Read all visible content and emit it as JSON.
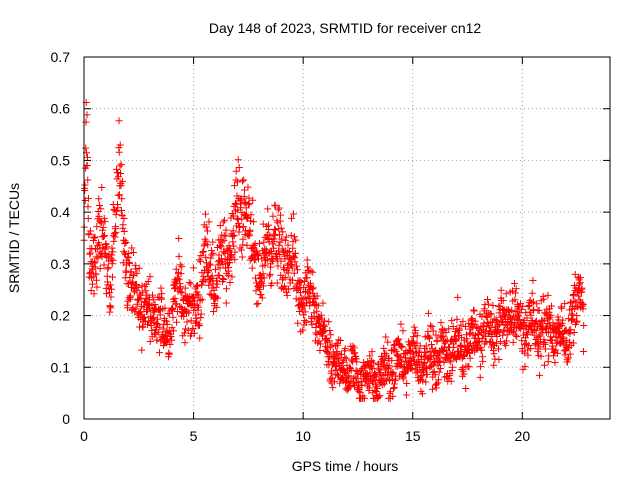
{
  "chart_data": {
    "type": "scatter",
    "title": "Day 148 of 2023, SRMTID for receiver cn12",
    "xlabel": "GPS time / hours",
    "ylabel": "SRMTID / TECUs",
    "xlim": [
      0,
      24
    ],
    "ylim": [
      0,
      0.7
    ],
    "xticks": [
      0,
      5,
      10,
      15,
      20
    ],
    "xtick_labels": [
      "0",
      "5",
      "10",
      "15",
      "20"
    ],
    "yticks": [
      0,
      0.1,
      0.2,
      0.3,
      0.4,
      0.5,
      0.6,
      0.7
    ],
    "ytick_labels": [
      "0",
      "0.1",
      "0.2",
      "0.3",
      "0.4",
      "0.5",
      "0.6",
      "0.7"
    ],
    "grid": true,
    "marker": "+",
    "color": "#ff0000",
    "series": [
      {
        "name": "SRMTID",
        "profile_hours": [
          0.0,
          0.1,
          0.25,
          0.5,
          0.8,
          1.0,
          1.2,
          1.5,
          1.65,
          1.9,
          2.1,
          2.5,
          2.8,
          3.2,
          3.6,
          4.0,
          4.3,
          4.6,
          5.0,
          5.3,
          5.6,
          6.0,
          6.3,
          6.6,
          6.9,
          7.2,
          7.5,
          7.8,
          8.1,
          8.4,
          8.7,
          9.0,
          9.3,
          9.5,
          9.7,
          10.0,
          10.5,
          11.0,
          11.5,
          12.0,
          12.5,
          13.0,
          13.5,
          14.0,
          14.5,
          15.0,
          15.5,
          16.0,
          16.5,
          17.0,
          17.5,
          18.0,
          18.5,
          19.0,
          19.5,
          20.0,
          20.5,
          21.0,
          21.5,
          22.0,
          22.3,
          22.6,
          22.8
        ],
        "profile_values": [
          0.4,
          0.55,
          0.3,
          0.32,
          0.36,
          0.3,
          0.26,
          0.42,
          0.48,
          0.32,
          0.26,
          0.24,
          0.2,
          0.2,
          0.17,
          0.2,
          0.26,
          0.22,
          0.2,
          0.26,
          0.32,
          0.26,
          0.3,
          0.33,
          0.38,
          0.42,
          0.38,
          0.3,
          0.28,
          0.33,
          0.36,
          0.3,
          0.3,
          0.33,
          0.24,
          0.23,
          0.22,
          0.14,
          0.1,
          0.1,
          0.08,
          0.08,
          0.08,
          0.1,
          0.11,
          0.12,
          0.12,
          0.12,
          0.13,
          0.14,
          0.15,
          0.16,
          0.17,
          0.18,
          0.2,
          0.18,
          0.18,
          0.17,
          0.17,
          0.16,
          0.2,
          0.24,
          0.22
        ],
        "spread": 0.06,
        "min_value": 0.04,
        "max_value": 0.63,
        "point_count": 2000
      }
    ]
  }
}
